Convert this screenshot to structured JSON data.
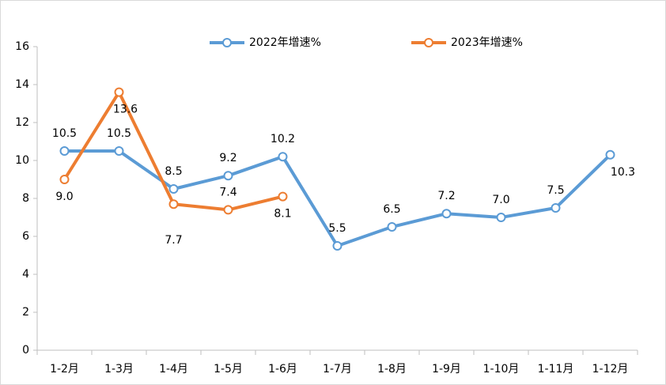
{
  "chart_data": {
    "type": "line",
    "categories": [
      "1-2月",
      "1-3月",
      "1-4月",
      "1-5月",
      "1-6月",
      "1-7月",
      "1-8月",
      "1-9月",
      "1-10月",
      "1-11月",
      "1-12月"
    ],
    "series": [
      {
        "name": "2022年增速%",
        "color": "#5b9bd5",
        "values": [
          10.5,
          10.5,
          8.5,
          9.2,
          10.2,
          5.5,
          6.5,
          7.2,
          7.0,
          7.5,
          10.3
        ],
        "value_labels": [
          "10.5",
          "10.5",
          "8.5",
          "9.2",
          "10.2",
          "5.5",
          "6.5",
          "7.2",
          "7.0",
          "7.5",
          "10.3"
        ]
      },
      {
        "name": "2023年增速%",
        "color": "#ed7d31",
        "values": [
          9.0,
          13.6,
          7.7,
          7.4,
          8.1,
          null,
          null,
          null,
          null,
          null,
          null
        ],
        "value_labels": [
          "9.0",
          "13.6",
          "7.7",
          "7.4",
          "8.1",
          null,
          null,
          null,
          null,
          null,
          null
        ]
      }
    ],
    "ylim": [
      0,
      16
    ],
    "yticks": [
      0,
      2,
      4,
      6,
      8,
      10,
      12,
      14,
      16
    ],
    "grid": false,
    "legend": "top"
  }
}
